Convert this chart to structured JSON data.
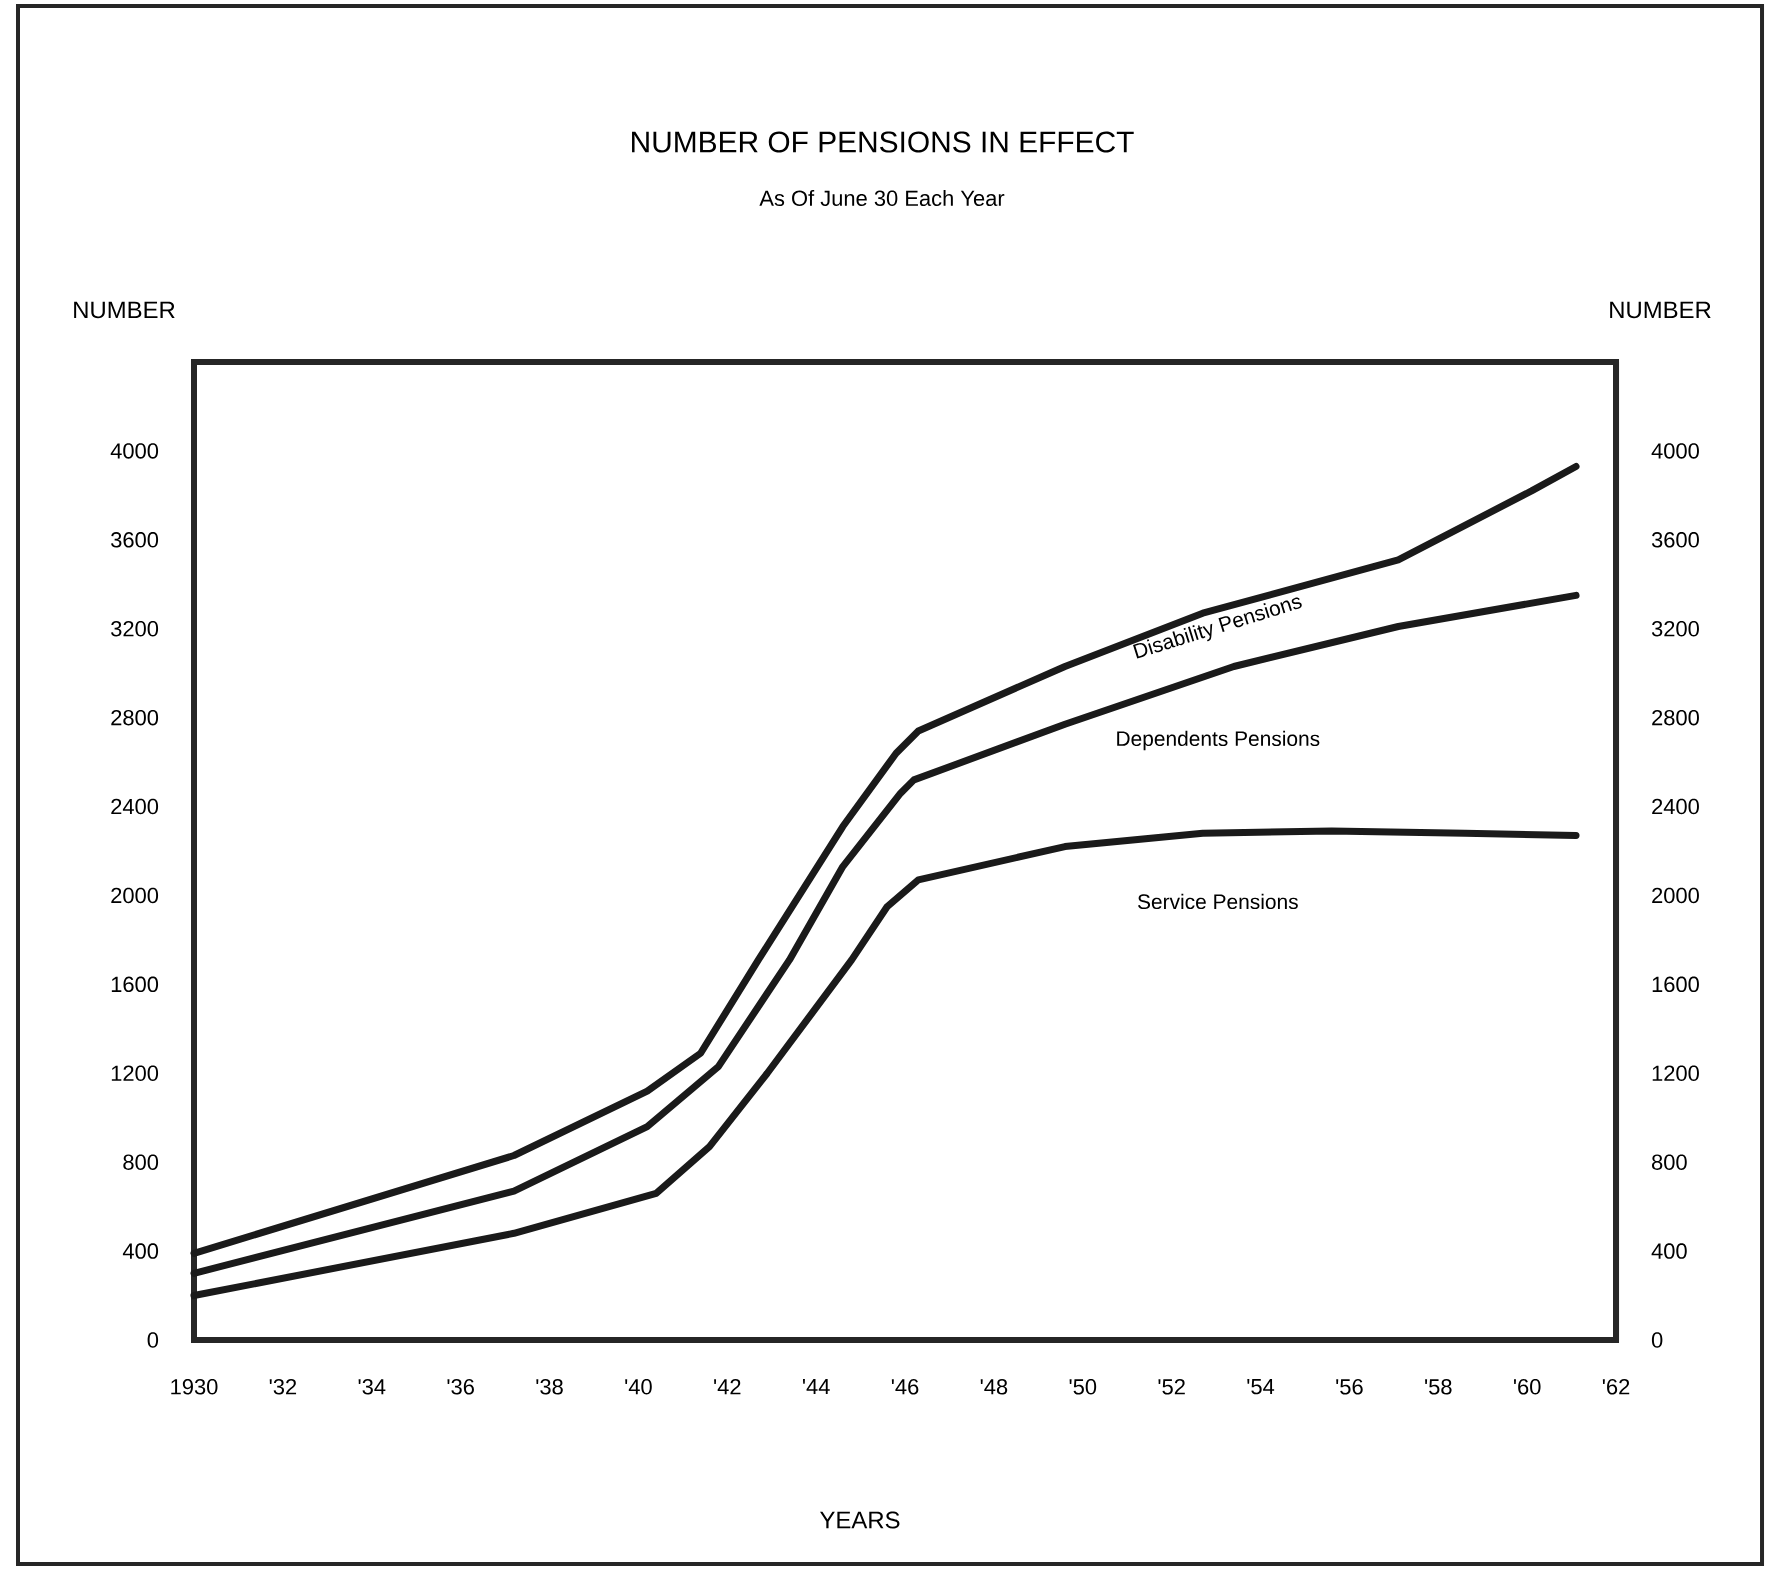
{
  "chart_data": {
    "type": "line",
    "title": "NUMBER OF PENSIONS IN EFFECT",
    "subtitle": "As Of June 30 Each Year",
    "xlabel": "YEARS",
    "ylabel": "NUMBER",
    "y2label": "NUMBER",
    "series": [
      {
        "name": "Service Pensions",
        "color": "#1a1a1a",
        "x": [
          1930,
          1937.2,
          1940.4,
          1941.6,
          1942.9,
          1944.8,
          1945.6,
          1946.3,
          1949.6,
          1952.7,
          1955.6,
          1958.6,
          1961.1
        ],
        "values": [
          200,
          480,
          660,
          870,
          1200,
          1710,
          1950,
          2070,
          2220,
          2280,
          2290,
          2280,
          2270
        ]
      },
      {
        "name": "Dependents Pensions",
        "color": "#1a1a1a",
        "x": [
          1930,
          1937.2,
          1940.2,
          1941.8,
          1943.4,
          1944.6,
          1945.9,
          1946.2,
          1949.6,
          1953.4,
          1957.1,
          1961.1
        ],
        "values": [
          300,
          670,
          960,
          1230,
          1710,
          2130,
          2460,
          2520,
          2770,
          3030,
          3210,
          3350
        ]
      },
      {
        "name": "Disability Pensions",
        "color": "#1a1a1a",
        "x": [
          1930,
          1937.2,
          1940.2,
          1941.4,
          1942.7,
          1944.6,
          1945.8,
          1946.3,
          1949.6,
          1952.7,
          1957.1,
          1960.1,
          1961.1
        ],
        "values": [
          390,
          830,
          1120,
          1290,
          1710,
          2310,
          2640,
          2740,
          3030,
          3270,
          3510,
          3820,
          3930
        ]
      }
    ],
    "xlim": [
      1930,
      1962
    ],
    "xticks": [
      1930,
      {
        "value": 1932,
        "label": "'32"
      },
      {
        "value": 1934,
        "label": "'34"
      },
      {
        "value": 1936,
        "label": "'36"
      },
      {
        "value": 1938,
        "label": "'38"
      },
      {
        "value": 1940,
        "label": "'40"
      },
      {
        "value": 1942,
        "label": "'42"
      },
      {
        "value": 1944,
        "label": "'44"
      },
      {
        "value": 1946,
        "label": "'46"
      },
      {
        "value": 1948,
        "label": "'48"
      },
      {
        "value": 1950,
        "label": "'50"
      },
      {
        "value": 1952,
        "label": "'52"
      },
      {
        "value": 1954,
        "label": "'54"
      },
      {
        "value": 1956,
        "label": "'56"
      },
      {
        "value": 1958,
        "label": "'58"
      },
      {
        "value": 1960,
        "label": "'60"
      },
      {
        "value": 1962,
        "label": "'62"
      }
    ],
    "ylim": [
      0,
      4400
    ],
    "yticks": [
      0,
      400,
      800,
      1200,
      1600,
      2000,
      2400,
      2800,
      3200,
      3600,
      4000
    ],
    "y2lim": [
      0,
      4400
    ],
    "y2ticks": [
      0,
      400,
      800,
      1200,
      1600,
      2000,
      2400,
      2800,
      3200,
      3600,
      4000
    ],
    "line_style": "solid"
  }
}
